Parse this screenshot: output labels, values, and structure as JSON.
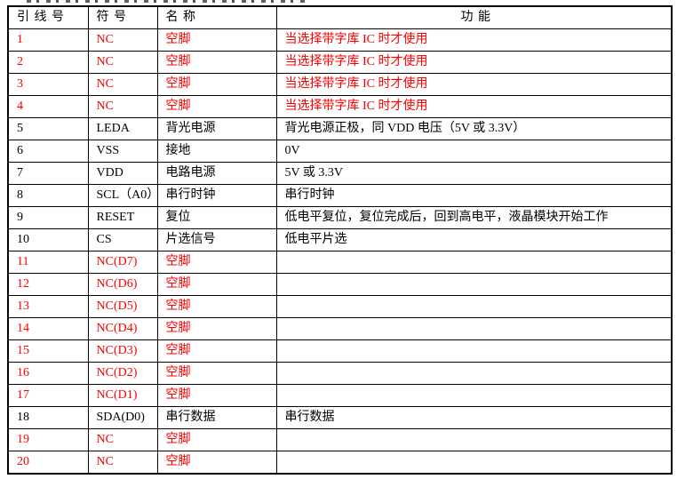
{
  "colors": {
    "background": "#ffffff",
    "text": "#000000",
    "highlight_red": "#ff0000",
    "border": "#000000"
  },
  "table": {
    "headers": [
      {
        "label": "引 线 号"
      },
      {
        "label": "符 号"
      },
      {
        "label": "名 称"
      },
      {
        "label": "功 能"
      }
    ],
    "rows": [
      {
        "pin": "1",
        "symbol": "NC",
        "name": "空脚",
        "func": "当选择带字库 IC 时才使用",
        "red": true
      },
      {
        "pin": "2",
        "symbol": "NC",
        "name": "空脚",
        "func": "当选择带字库 IC 时才使用",
        "red": true
      },
      {
        "pin": "3",
        "symbol": "NC",
        "name": "空脚",
        "func": "当选择带字库 IC 时才使用",
        "red": true
      },
      {
        "pin": "4",
        "symbol": "NC",
        "name": "空脚",
        "func": "当选择带字库 IC 时才使用",
        "red": true
      },
      {
        "pin": "5",
        "symbol": "LEDA",
        "name": "背光电源",
        "func": "背光电源正极，同 VDD 电压（5V 或 3.3V）",
        "red": false
      },
      {
        "pin": "6",
        "symbol": "VSS",
        "name": "接地",
        "func": "0V",
        "red": false
      },
      {
        "pin": "7",
        "symbol": "VDD",
        "name": "电路电源",
        "func": "5V 或 3.3V",
        "red": false
      },
      {
        "pin": "8",
        "symbol": "SCL（A0）",
        "name": "串行时钟",
        "func": "串行时钟",
        "red": false
      },
      {
        "pin": "9",
        "symbol": "RESET",
        "name": "复位",
        "func": "低电平复位，复位完成后，回到高电平，液晶模块开始工作",
        "red": false
      },
      {
        "pin": "10",
        "symbol": "CS",
        "name": "片选信号",
        "func": "低电平片选",
        "red": false
      },
      {
        "pin": "11",
        "symbol": "NC(D7)",
        "name": "空脚",
        "func": "",
        "red": true
      },
      {
        "pin": "12",
        "symbol": "NC(D6)",
        "name": "空脚",
        "func": "",
        "red": true
      },
      {
        "pin": "13",
        "symbol": "NC(D5)",
        "name": "空脚",
        "func": "",
        "red": true
      },
      {
        "pin": "14",
        "symbol": "NC(D4)",
        "name": "空脚",
        "func": "",
        "red": true
      },
      {
        "pin": "15",
        "symbol": "NC(D3)",
        "name": "空脚",
        "func": "",
        "red": true
      },
      {
        "pin": "16",
        "symbol": "NC(D2)",
        "name": "空脚",
        "func": "",
        "red": true
      },
      {
        "pin": "17",
        "symbol": "NC(D1)",
        "name": "空脚",
        "func": "",
        "red": true
      },
      {
        "pin": "18",
        "symbol": "SDA(D0)",
        "name": "串行数据",
        "func": "串行数据",
        "red": false
      },
      {
        "pin": "19",
        "symbol": "NC",
        "name": "空脚",
        "func": "",
        "red": true
      },
      {
        "pin": "20",
        "symbol": "NC",
        "name": "空脚",
        "func": "",
        "red": true
      }
    ]
  }
}
